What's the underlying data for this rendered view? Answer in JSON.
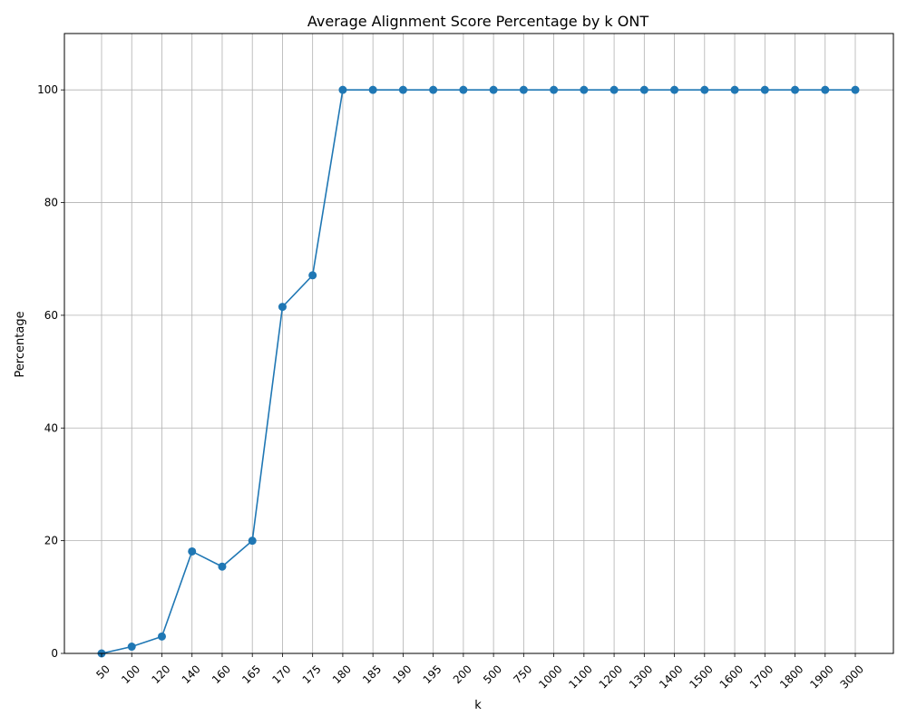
{
  "chart_data": {
    "type": "line",
    "title": "Average Alignment Score Percentage by k ONT",
    "xlabel": "k",
    "ylabel": "Percentage",
    "categories": [
      "50",
      "100",
      "120",
      "140",
      "160",
      "165",
      "170",
      "175",
      "180",
      "185",
      "190",
      "195",
      "200",
      "500",
      "750",
      "1000",
      "1100",
      "1200",
      "1300",
      "1400",
      "1500",
      "1600",
      "1700",
      "1800",
      "1900",
      "3000"
    ],
    "series": [
      {
        "values": [
          0,
          1.2,
          3.0,
          18.1,
          15.4,
          20.0,
          61.5,
          67.1,
          100,
          100,
          100,
          100,
          100,
          100,
          100,
          100,
          100,
          100,
          100,
          100,
          100,
          100,
          100,
          100,
          100,
          100
        ],
        "color": "#1f77b4"
      }
    ],
    "ylim": [
      0,
      110
    ],
    "yticks": [
      "0",
      "20",
      "40",
      "60",
      "80",
      "100"
    ],
    "grid": true,
    "marker": "circle",
    "xtick_rotation": "45deg"
  }
}
